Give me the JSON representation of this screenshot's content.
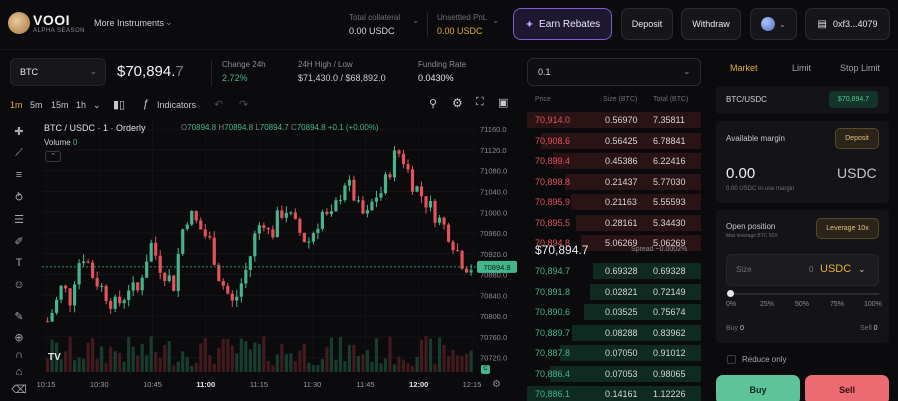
{
  "header": {
    "logo_text": "VOOI",
    "logo_sub": "ALPHA SEASON",
    "more_instruments": "More Instruments",
    "total_collateral_label": "Total collateral",
    "total_collateral_value": "0.00 USDC",
    "unsettled_pnl_label": "Unsettled PnL",
    "unsettled_pnl_value": "0.00 USDC",
    "earn_rebates": "Earn Rebates",
    "deposit": "Deposit",
    "withdraw": "Withdraw",
    "wallet": "0xf3...4079"
  },
  "ticker": {
    "symbol": "BTC",
    "price_main": "$70,894.",
    "price_dim": "7",
    "change_label": "Change 24h",
    "change_value": "2.72%",
    "highlow_label": "24H High / Low",
    "highlow_value": "$71,430.0 / $68,892.0",
    "funding_label": "Funding Rate",
    "funding_value": "0.0430%"
  },
  "toolbar": {
    "intervals": [
      "1m",
      "5m",
      "15m",
      "1h"
    ],
    "indicators": "Indicators"
  },
  "chart": {
    "title": "BTC / USDC · 1 · Orderly",
    "ohlc": {
      "o_label": "O",
      "o": "70894.8",
      "h_label": "H",
      "h": "70894.8",
      "l_label": "L",
      "l": "70894.7",
      "c_label": "C",
      "c": "70894.8",
      "chg": "+0.1 (+0.00%)"
    },
    "volume_label": "Volume",
    "volume_value": "0",
    "tv_logo": "TV",
    "current_price_tag": "70894.8",
    "time_toggle": "C"
  },
  "chart_data": {
    "type": "candlestick",
    "title": "BTC / USDC · 1 · Orderly",
    "y_ticks": [
      "71160.0",
      "71120.0",
      "71080.0",
      "71040.0",
      "71000.0",
      "70960.0",
      "70920.0",
      "70880.0",
      "70840.0",
      "70800.0",
      "70760.0",
      "70720.0"
    ],
    "x_ticks": [
      "10:15",
      "10:30",
      "10:45",
      "11:00",
      "11:15",
      "11:30",
      "11:45",
      "12:00",
      "12:15"
    ],
    "ylim": [
      70700,
      71170
    ],
    "current_price": 70894.8,
    "approx_close_path": [
      70790,
      70820,
      70860,
      70830,
      70900,
      70920,
      70880,
      70860,
      70840,
      70820,
      70830,
      70860,
      70840,
      70900,
      70940,
      70900,
      70880,
      70860,
      70960,
      71000,
      70980,
      70960,
      70940,
      70880,
      70850,
      70820,
      70860,
      70900,
      70960,
      70990,
      70950,
      70990,
      71010,
      70980,
      70960,
      70940,
      70970,
      71000,
      70980,
      71020,
      71060,
      71040,
      71000,
      70990,
      71030,
      71040,
      71080,
      71120,
      71100,
      71060,
      71040,
      71020,
      71000,
      70980,
      70960,
      70930,
      70900,
      70895
    ]
  },
  "orderbook": {
    "tick_size": "0.1",
    "headers": {
      "price": "Price",
      "size": "Size (BTC)",
      "total": "Total (BTC)"
    },
    "asks": [
      {
        "price": "70,914.0",
        "size": "0.56970",
        "total": "7.35811",
        "depth": 1.0
      },
      {
        "price": "70,908.6",
        "size": "0.56425",
        "total": "6.78841",
        "depth": 0.92
      },
      {
        "price": "70,899.4",
        "size": "0.45386",
        "total": "6.22416",
        "depth": 0.85
      },
      {
        "price": "70,898.8",
        "size": "0.21437",
        "total": "5.77030",
        "depth": 0.78
      },
      {
        "price": "70,895.9",
        "size": "0.21163",
        "total": "5.55593",
        "depth": 0.75
      },
      {
        "price": "70,895.5",
        "size": "0.28161",
        "total": "5.34430",
        "depth": 0.72
      },
      {
        "price": "70,894.8",
        "size": "5.06269",
        "total": "5.06269",
        "depth": 0.69
      }
    ],
    "mid_price": "$70,894.7",
    "spread": "Spread ~0.0002%",
    "bids": [
      {
        "price": "70,894.7",
        "size": "0.69328",
        "total": "0.69328",
        "depth": 0.62
      },
      {
        "price": "70,891.8",
        "size": "0.02821",
        "total": "0.72149",
        "depth": 0.64
      },
      {
        "price": "70,890.6",
        "size": "0.03525",
        "total": "0.75674",
        "depth": 0.67
      },
      {
        "price": "70,889.7",
        "size": "0.08288",
        "total": "0.83962",
        "depth": 0.74
      },
      {
        "price": "70,887.8",
        "size": "0.07050",
        "total": "0.91012",
        "depth": 0.81
      },
      {
        "price": "70,886.4",
        "size": "0.07053",
        "total": "0.98065",
        "depth": 0.87
      },
      {
        "price": "70,886.1",
        "size": "0.14161",
        "total": "1.12226",
        "depth": 1.0
      }
    ]
  },
  "trade_panel": {
    "tabs": [
      "Market",
      "Limit",
      "Stop Limit"
    ],
    "pair": "BTC/USDC",
    "pair_price": "$70,894.7",
    "available_margin_label": "Available margin",
    "deposit": "Deposit",
    "available_amount": "0.00",
    "available_currency": "USDC",
    "in_use": "0.00 USDC in-use margin",
    "open_position_label": "Open position",
    "max_leverage": "Max leverage BTC 50X",
    "leverage_button": "Leverage 10x",
    "size_label": "Size",
    "size_value": "0",
    "size_currency": "USDC",
    "pct_ticks": [
      "0%",
      "25%",
      "50%",
      "75%",
      "100%"
    ],
    "slider_fraction": 0,
    "buy_label": "Buy",
    "buy_value": "0",
    "sell_label": "Sell",
    "sell_value": "0",
    "reduce_only": "Reduce only",
    "buy_button": "Buy",
    "sell_button": "Sell"
  },
  "colors": {
    "accent_green": "#47b58b",
    "accent_red": "#e4525c",
    "accent_gold": "#e0b030",
    "accent_purple": "#7e5cd6"
  }
}
